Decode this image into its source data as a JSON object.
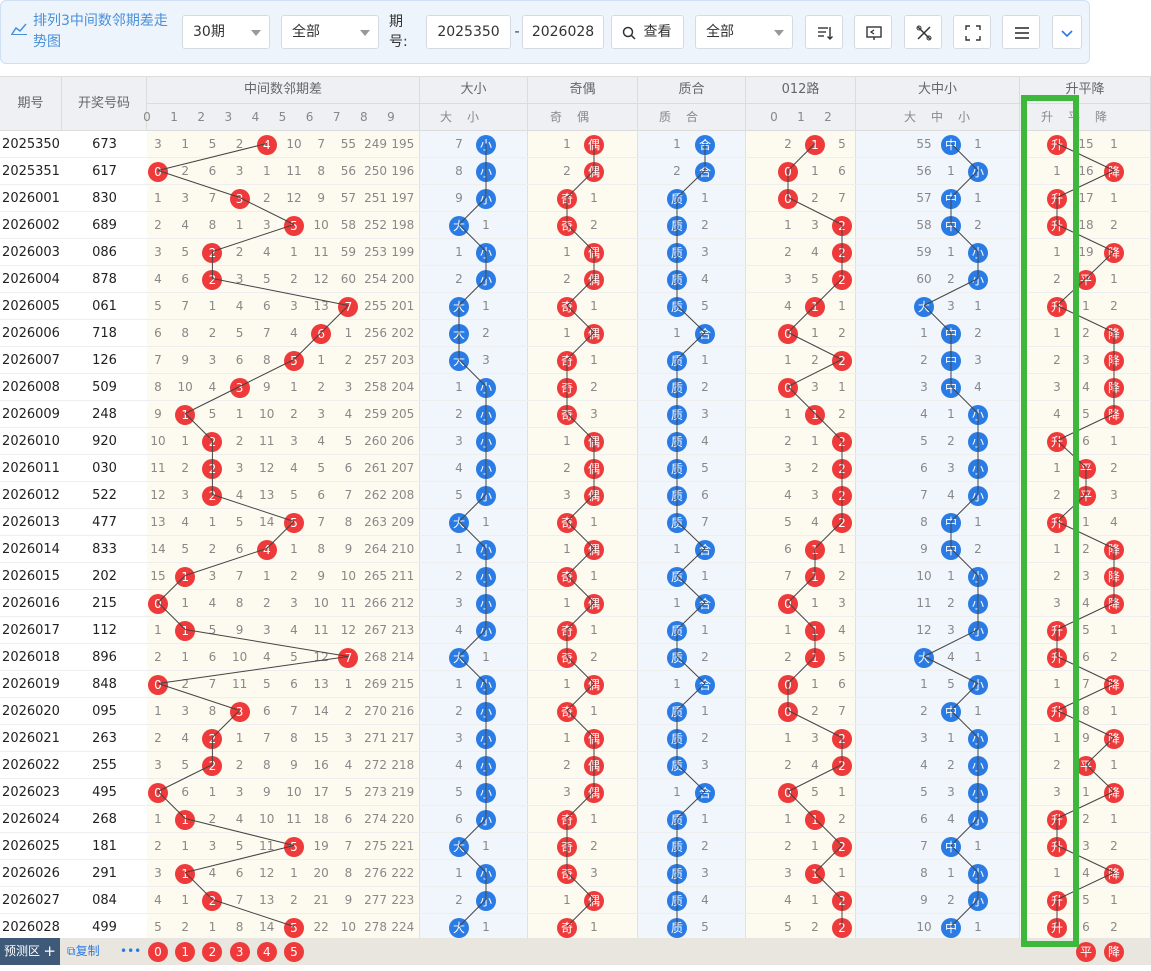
{
  "toolbar": {
    "title": "排列3中间数邻期差走势图",
    "period_select": "30期",
    "filter_select": "全部",
    "period_label": "期号:",
    "start": "2025350",
    "end": "2026028",
    "dash": "-",
    "search_btn": "查看",
    "filter2_select": "全部"
  },
  "headers": {
    "issue": "期号",
    "number": "开奖号码",
    "g1": "中间数邻期差",
    "g2": "大小",
    "g3": "奇偶",
    "g4": "质合",
    "g5": "012路",
    "g6": "大中小",
    "g7": "升平降",
    "sub1": [
      "0",
      "1",
      "2",
      "3",
      "4",
      "5",
      "6",
      "7",
      "8",
      "9"
    ],
    "sub2": [
      "大",
      "小"
    ],
    "sub3": [
      "奇",
      "偶"
    ],
    "sub4": [
      "质",
      "合"
    ],
    "sub5": [
      "0",
      "1",
      "2"
    ],
    "sub6": [
      "大",
      "中",
      "小"
    ],
    "sub7": [
      "升",
      "平",
      "降"
    ]
  },
  "colors": {
    "red": "#ee3a3a",
    "blue": "#2a7be4",
    "highlight": "#3db83d"
  },
  "rows": [
    [
      "2025350",
      "673",
      4,
      [
        3,
        1,
        5,
        2,
        null,
        10,
        7,
        55,
        249,
        195
      ],
      "小",
      [
        7,
        null
      ],
      "偶",
      [
        1,
        null
      ],
      "合",
      [
        1,
        null
      ],
      1,
      [
        2,
        null,
        5
      ],
      "中",
      [
        55,
        null,
        1
      ],
      "升",
      [
        null,
        15,
        1
      ]
    ],
    [
      "2025351",
      "617",
      0,
      [
        null,
        2,
        6,
        3,
        1,
        11,
        8,
        56,
        250,
        196
      ],
      "小",
      [
        8,
        null
      ],
      "偶",
      [
        2,
        null
      ],
      "合",
      [
        2,
        null
      ],
      0,
      [
        null,
        1,
        6
      ],
      "小",
      [
        56,
        1,
        null
      ],
      "降",
      [
        1,
        16,
        null
      ]
    ],
    [
      "2026001",
      "830",
      3,
      [
        1,
        3,
        7,
        null,
        2,
        12,
        9,
        57,
        251,
        197
      ],
      "小",
      [
        9,
        null
      ],
      "奇",
      [
        null,
        1
      ],
      "质",
      [
        null,
        1
      ],
      0,
      [
        null,
        2,
        7
      ],
      "中",
      [
        57,
        null,
        1
      ],
      "升",
      [
        null,
        17,
        1
      ]
    ],
    [
      "2026002",
      "689",
      5,
      [
        2,
        4,
        8,
        1,
        3,
        null,
        10,
        58,
        252,
        198
      ],
      "大",
      [
        null,
        1
      ],
      "奇",
      [
        null,
        2
      ],
      "质",
      [
        null,
        2
      ],
      2,
      [
        1,
        3,
        null
      ],
      "中",
      [
        58,
        null,
        2
      ],
      "升",
      [
        null,
        18,
        2
      ]
    ],
    [
      "2026003",
      "086",
      2,
      [
        3,
        5,
        null,
        2,
        4,
        1,
        11,
        59,
        253,
        199
      ],
      "小",
      [
        1,
        null
      ],
      "偶",
      [
        1,
        null
      ],
      "质",
      [
        null,
        3
      ],
      2,
      [
        2,
        4,
        null
      ],
      "小",
      [
        59,
        1,
        null
      ],
      "降",
      [
        1,
        19,
        null
      ]
    ],
    [
      "2026004",
      "878",
      2,
      [
        4,
        6,
        null,
        3,
        5,
        2,
        12,
        60,
        254,
        200
      ],
      "小",
      [
        2,
        null
      ],
      "偶",
      [
        2,
        null
      ],
      "质",
      [
        null,
        4
      ],
      2,
      [
        3,
        5,
        null
      ],
      "小",
      [
        60,
        2,
        null
      ],
      "平",
      [
        2,
        null,
        1
      ]
    ],
    [
      "2026005",
      "061",
      7,
      [
        5,
        7,
        1,
        4,
        6,
        3,
        13,
        null,
        255,
        201
      ],
      "大",
      [
        null,
        1
      ],
      "奇",
      [
        null,
        1
      ],
      "质",
      [
        null,
        5
      ],
      1,
      [
        4,
        null,
        1
      ],
      "大",
      [
        null,
        3,
        1
      ],
      "升",
      [
        null,
        1,
        2
      ]
    ],
    [
      "2026006",
      "718",
      6,
      [
        6,
        8,
        2,
        5,
        7,
        4,
        null,
        1,
        256,
        202
      ],
      "大",
      [
        null,
        2
      ],
      "偶",
      [
        1,
        null
      ],
      "合",
      [
        1,
        null
      ],
      0,
      [
        null,
        1,
        2
      ],
      "中",
      [
        1,
        null,
        2
      ],
      "降",
      [
        1,
        2,
        null
      ]
    ],
    [
      "2026007",
      "126",
      5,
      [
        7,
        9,
        3,
        6,
        8,
        null,
        1,
        2,
        257,
        203
      ],
      "大",
      [
        null,
        3
      ],
      "奇",
      [
        null,
        1
      ],
      "质",
      [
        null,
        1
      ],
      2,
      [
        1,
        2,
        null
      ],
      "中",
      [
        2,
        null,
        3
      ],
      "降",
      [
        2,
        3,
        null
      ]
    ],
    [
      "2026008",
      "509",
      3,
      [
        8,
        10,
        4,
        null,
        9,
        1,
        2,
        3,
        258,
        204
      ],
      "小",
      [
        1,
        null
      ],
      "奇",
      [
        null,
        2
      ],
      "质",
      [
        null,
        2
      ],
      0,
      [
        null,
        3,
        1
      ],
      "中",
      [
        3,
        null,
        4
      ],
      "降",
      [
        3,
        4,
        null
      ]
    ],
    [
      "2026009",
      "248",
      1,
      [
        9,
        null,
        5,
        1,
        10,
        2,
        3,
        4,
        259,
        205
      ],
      "小",
      [
        2,
        null
      ],
      "奇",
      [
        null,
        3
      ],
      "质",
      [
        null,
        3
      ],
      1,
      [
        1,
        null,
        2
      ],
      "小",
      [
        4,
        1,
        null
      ],
      "降",
      [
        4,
        5,
        null
      ]
    ],
    [
      "2026010",
      "920",
      2,
      [
        10,
        1,
        null,
        2,
        11,
        3,
        4,
        5,
        260,
        206
      ],
      "小",
      [
        3,
        null
      ],
      "偶",
      [
        1,
        null
      ],
      "质",
      [
        null,
        4
      ],
      2,
      [
        2,
        1,
        null
      ],
      "小",
      [
        5,
        2,
        null
      ],
      "升",
      [
        null,
        6,
        1
      ]
    ],
    [
      "2026011",
      "030",
      2,
      [
        11,
        2,
        null,
        3,
        12,
        4,
        5,
        6,
        261,
        207
      ],
      "小",
      [
        4,
        null
      ],
      "偶",
      [
        2,
        null
      ],
      "质",
      [
        null,
        5
      ],
      2,
      [
        3,
        2,
        null
      ],
      "小",
      [
        6,
        3,
        null
      ],
      "平",
      [
        1,
        null,
        2
      ]
    ],
    [
      "2026012",
      "522",
      2,
      [
        12,
        3,
        null,
        4,
        13,
        5,
        6,
        7,
        262,
        208
      ],
      "小",
      [
        5,
        null
      ],
      "偶",
      [
        3,
        null
      ],
      "质",
      [
        null,
        6
      ],
      2,
      [
        4,
        3,
        null
      ],
      "小",
      [
        7,
        4,
        null
      ],
      "平",
      [
        2,
        null,
        3
      ]
    ],
    [
      "2026013",
      "477",
      5,
      [
        13,
        4,
        1,
        5,
        14,
        null,
        7,
        8,
        263,
        209
      ],
      "大",
      [
        null,
        1
      ],
      "奇",
      [
        null,
        1
      ],
      "质",
      [
        null,
        7
      ],
      2,
      [
        5,
        4,
        null
      ],
      "中",
      [
        8,
        null,
        1
      ],
      "升",
      [
        null,
        1,
        4
      ]
    ],
    [
      "2026014",
      "833",
      4,
      [
        14,
        5,
        2,
        6,
        null,
        1,
        8,
        9,
        264,
        210
      ],
      "小",
      [
        1,
        null
      ],
      "偶",
      [
        1,
        null
      ],
      "合",
      [
        1,
        null
      ],
      1,
      [
        6,
        null,
        1
      ],
      "中",
      [
        9,
        null,
        2
      ],
      "降",
      [
        1,
        2,
        null
      ]
    ],
    [
      "2026015",
      "202",
      1,
      [
        15,
        null,
        3,
        7,
        1,
        2,
        9,
        10,
        265,
        211
      ],
      "小",
      [
        2,
        null
      ],
      "奇",
      [
        null,
        1
      ],
      "质",
      [
        null,
        1
      ],
      1,
      [
        7,
        null,
        2
      ],
      "小",
      [
        10,
        1,
        null
      ],
      "降",
      [
        2,
        3,
        null
      ]
    ],
    [
      "2026016",
      "215",
      0,
      [
        null,
        1,
        4,
        8,
        2,
        3,
        10,
        11,
        266,
        212
      ],
      "小",
      [
        3,
        null
      ],
      "偶",
      [
        1,
        null
      ],
      "合",
      [
        1,
        null
      ],
      0,
      [
        null,
        1,
        3
      ],
      "小",
      [
        11,
        2,
        null
      ],
      "降",
      [
        3,
        4,
        null
      ]
    ],
    [
      "2026017",
      "112",
      1,
      [
        1,
        null,
        5,
        9,
        3,
        4,
        11,
        12,
        267,
        213
      ],
      "小",
      [
        4,
        null
      ],
      "奇",
      [
        null,
        1
      ],
      "质",
      [
        null,
        1
      ],
      1,
      [
        1,
        null,
        4
      ],
      "小",
      [
        12,
        3,
        null
      ],
      "升",
      [
        null,
        5,
        1
      ]
    ],
    [
      "2026018",
      "896",
      7,
      [
        2,
        1,
        6,
        10,
        4,
        5,
        12,
        null,
        268,
        214
      ],
      "大",
      [
        null,
        1
      ],
      "奇",
      [
        null,
        2
      ],
      "质",
      [
        null,
        2
      ],
      1,
      [
        2,
        null,
        5
      ],
      "大",
      [
        null,
        4,
        1
      ],
      "升",
      [
        null,
        6,
        2
      ]
    ],
    [
      "2026019",
      "848",
      0,
      [
        null,
        2,
        7,
        11,
        5,
        6,
        13,
        1,
        269,
        215
      ],
      "小",
      [
        1,
        null
      ],
      "偶",
      [
        1,
        null
      ],
      "合",
      [
        1,
        null
      ],
      0,
      [
        null,
        1,
        6
      ],
      "小",
      [
        1,
        5,
        null
      ],
      "降",
      [
        1,
        7,
        null
      ]
    ],
    [
      "2026020",
      "095",
      3,
      [
        1,
        3,
        8,
        null,
        6,
        7,
        14,
        2,
        270,
        216
      ],
      "小",
      [
        2,
        null
      ],
      "奇",
      [
        null,
        1
      ],
      "质",
      [
        null,
        1
      ],
      0,
      [
        null,
        2,
        7
      ],
      "中",
      [
        2,
        null,
        1
      ],
      "升",
      [
        null,
        8,
        1
      ]
    ],
    [
      "2026021",
      "263",
      2,
      [
        2,
        4,
        null,
        1,
        7,
        8,
        15,
        3,
        271,
        217
      ],
      "小",
      [
        3,
        null
      ],
      "偶",
      [
        1,
        null
      ],
      "质",
      [
        null,
        2
      ],
      2,
      [
        1,
        3,
        null
      ],
      "小",
      [
        3,
        1,
        null
      ],
      "降",
      [
        1,
        9,
        null
      ]
    ],
    [
      "2026022",
      "255",
      2,
      [
        3,
        5,
        null,
        2,
        8,
        9,
        16,
        4,
        272,
        218
      ],
      "小",
      [
        4,
        null
      ],
      "偶",
      [
        2,
        null
      ],
      "质",
      [
        null,
        3
      ],
      2,
      [
        2,
        4,
        null
      ],
      "小",
      [
        4,
        2,
        null
      ],
      "平",
      [
        2,
        null,
        1
      ]
    ],
    [
      "2026023",
      "495",
      0,
      [
        null,
        6,
        1,
        3,
        9,
        10,
        17,
        5,
        273,
        219
      ],
      "小",
      [
        5,
        null
      ],
      "偶",
      [
        3,
        null
      ],
      "合",
      [
        1,
        null
      ],
      0,
      [
        null,
        5,
        1
      ],
      "小",
      [
        5,
        3,
        null
      ],
      "降",
      [
        3,
        1,
        null
      ]
    ],
    [
      "2026024",
      "268",
      1,
      [
        1,
        null,
        2,
        4,
        10,
        11,
        18,
        6,
        274,
        220
      ],
      "小",
      [
        6,
        null
      ],
      "奇",
      [
        null,
        1
      ],
      "质",
      [
        null,
        1
      ],
      1,
      [
        1,
        null,
        2
      ],
      "小",
      [
        6,
        4,
        null
      ],
      "升",
      [
        null,
        2,
        1
      ]
    ],
    [
      "2026025",
      "181",
      5,
      [
        2,
        1,
        3,
        5,
        11,
        null,
        19,
        7,
        275,
        221
      ],
      "大",
      [
        null,
        1
      ],
      "奇",
      [
        null,
        2
      ],
      "质",
      [
        null,
        2
      ],
      2,
      [
        2,
        1,
        null
      ],
      "中",
      [
        7,
        null,
        1
      ],
      "升",
      [
        null,
        3,
        2
      ]
    ],
    [
      "2026026",
      "291",
      1,
      [
        3,
        null,
        4,
        6,
        12,
        1,
        20,
        8,
        276,
        222
      ],
      "小",
      [
        1,
        null
      ],
      "奇",
      [
        null,
        3
      ],
      "质",
      [
        null,
        3
      ],
      1,
      [
        3,
        null,
        1
      ],
      "小",
      [
        8,
        1,
        null
      ],
      "降",
      [
        1,
        4,
        null
      ]
    ],
    [
      "2026027",
      "084",
      2,
      [
        4,
        1,
        null,
        7,
        13,
        2,
        21,
        9,
        277,
        223
      ],
      "小",
      [
        2,
        null
      ],
      "偶",
      [
        1,
        null
      ],
      "质",
      [
        null,
        4
      ],
      2,
      [
        4,
        1,
        null
      ],
      "小",
      [
        9,
        2,
        null
      ],
      "升",
      [
        null,
        5,
        1
      ]
    ],
    [
      "2026028",
      "499",
      5,
      [
        5,
        2,
        1,
        8,
        14,
        null,
        22,
        10,
        278,
        224
      ],
      "大",
      [
        null,
        1
      ],
      "奇",
      [
        null,
        1
      ],
      "质",
      [
        null,
        5
      ],
      2,
      [
        5,
        2,
        null
      ],
      "中",
      [
        10,
        null,
        1
      ],
      "升",
      [
        null,
        6,
        2
      ]
    ]
  ],
  "predict": {
    "label": "预测区",
    "copy": "复制",
    "more": "•••",
    "balls": [
      "0",
      "1",
      "2",
      "3",
      "4",
      "5"
    ],
    "pred_rise": "平",
    "pred_fall": "降"
  }
}
